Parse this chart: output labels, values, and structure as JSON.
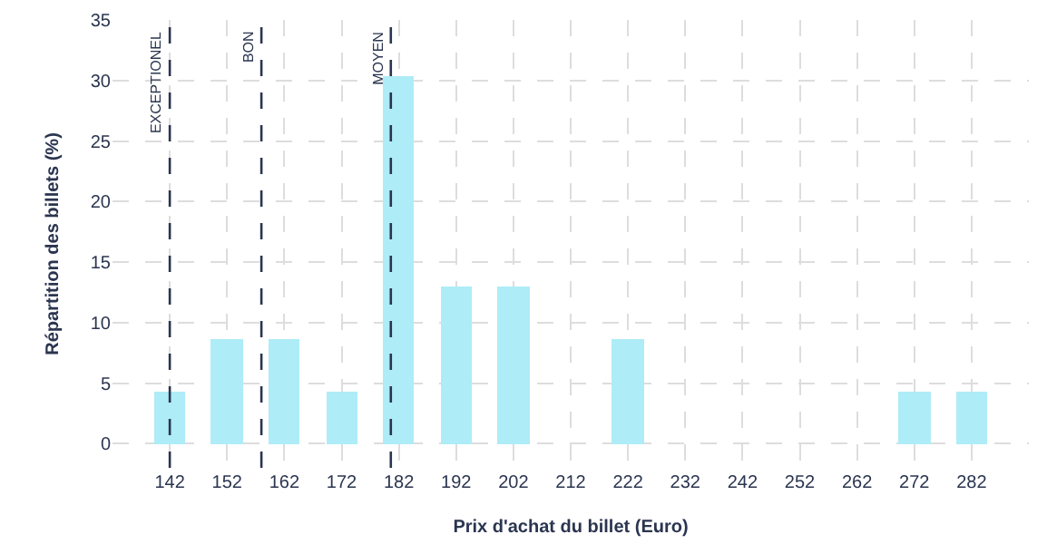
{
  "chart_data": {
    "type": "bar",
    "xlabel": "Prix d'achat du billet (Euro)",
    "ylabel": "Répartition des billets (%)",
    "x": [
      142,
      152,
      162,
      172,
      182,
      192,
      202,
      212,
      222,
      232,
      242,
      252,
      262,
      272,
      282
    ],
    "values": [
      4.3,
      8.7,
      8.7,
      4.3,
      30.4,
      13,
      13,
      0,
      8.7,
      0,
      0,
      0,
      0,
      4.3,
      4.3
    ],
    "color": "#aeecf7",
    "xlim": [
      132,
      292
    ],
    "xticks": [
      142,
      152,
      162,
      172,
      182,
      192,
      202,
      212,
      222,
      232,
      242,
      252,
      262,
      272,
      282
    ],
    "ylim": [
      -2,
      35
    ],
    "yticks": [
      0,
      5,
      10,
      15,
      20,
      25,
      30,
      35
    ],
    "ref_lines": [
      {
        "axis": "x",
        "value": 142,
        "label": "EXCEPTIONEL",
        "color": "#2b3550",
        "line_style": "dashed"
      },
      {
        "axis": "x",
        "value": 158,
        "label": "BON",
        "color": "#2b3550",
        "line_style": "dashed"
      },
      {
        "axis": "x",
        "value": 180.6,
        "label": "MOYEN",
        "color": "#2b3550",
        "line_style": "dashed"
      }
    ],
    "grid": true
  }
}
